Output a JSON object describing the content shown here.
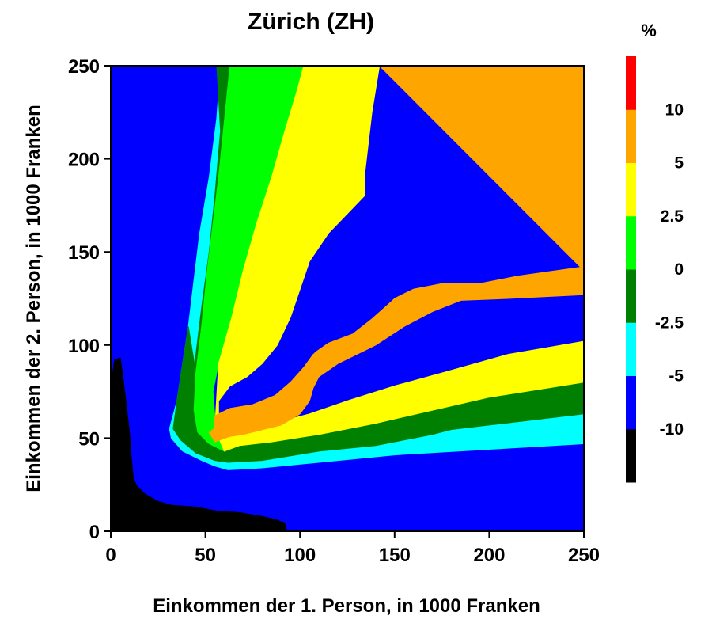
{
  "chart_data": {
    "type": "heatmap",
    "title": "Zürich (ZH)",
    "xlabel": "Einkommen der 1. Person, in 1000 Franken",
    "ylabel": "Einkommen der 2. Person, in 1000 Franken",
    "xlim": [
      0,
      250
    ],
    "ylim": [
      0,
      250
    ],
    "xticks": [
      0,
      50,
      100,
      150,
      200,
      250
    ],
    "yticks": [
      0,
      50,
      100,
      150,
      200,
      250
    ],
    "xtick_labels": [
      "0",
      "50",
      "100",
      "150",
      "200",
      "250"
    ],
    "ytick_labels": [
      "0",
      "50",
      "100",
      "150",
      "200",
      "250"
    ],
    "legend": {
      "unit": "%",
      "placement": "right",
      "bins": [
        {
          "color": "#000000",
          "range": "< -10"
        },
        {
          "color": "#0000ff",
          "range": "-10 to -5"
        },
        {
          "color": "#00ffff",
          "range": "-5 to -2.5"
        },
        {
          "color": "#008000",
          "range": "-2.5 to 0"
        },
        {
          "color": "#00ff00",
          "range": "0 to 2.5"
        },
        {
          "color": "#ffff00",
          "range": "2.5 to 5"
        },
        {
          "color": "#ffa500",
          "range": "5 to 10"
        },
        {
          "color": "#ff0000",
          "range": "> 10"
        }
      ],
      "tick_labels": [
        "-10",
        "-5",
        "-2.5",
        "0",
        "2.5",
        "5",
        "10"
      ]
    },
    "regions": [
      {
        "level": "-10 to -5",
        "color": "#0000ff",
        "polygon": [
          [
            0,
            0
          ],
          [
            250,
            0
          ],
          [
            250,
            250
          ],
          [
            0,
            250
          ]
        ]
      },
      {
        "level": "-5 to -2.5",
        "color": "#00ffff",
        "polygon": [
          [
            48,
            250
          ],
          [
            58,
            250
          ],
          [
            56,
            222
          ],
          [
            52,
            190
          ],
          [
            47,
            160
          ],
          [
            44,
            135
          ],
          [
            41,
            110
          ],
          [
            38,
            90
          ],
          [
            35,
            70
          ],
          [
            31,
            55
          ],
          [
            32,
            50
          ],
          [
            38,
            43
          ],
          [
            48,
            38
          ],
          [
            55,
            35
          ],
          [
            62,
            33
          ],
          [
            80,
            34
          ],
          [
            110,
            37
          ],
          [
            150,
            41
          ],
          [
            200,
            44
          ],
          [
            250,
            47
          ],
          [
            250,
            63
          ],
          [
            200,
            57
          ],
          [
            150,
            51
          ],
          [
            110,
            46
          ],
          [
            85,
            45
          ],
          [
            68,
            42
          ],
          [
            60,
            40
          ],
          [
            55,
            44
          ],
          [
            49,
            50
          ],
          [
            45,
            57
          ],
          [
            44,
            72
          ],
          [
            45,
            95
          ],
          [
            48,
            120
          ],
          [
            52,
            150
          ],
          [
            55,
            180
          ],
          [
            58,
            215
          ],
          [
            63,
            250
          ]
        ]
      },
      {
        "level": "-2.5 to 0",
        "color": "#008000",
        "polygon": [
          [
            56,
            250
          ],
          [
            67,
            250
          ],
          [
            65,
            225
          ],
          [
            61,
            195
          ],
          [
            57,
            165
          ],
          [
            54,
            140
          ],
          [
            51,
            115
          ],
          [
            48,
            95
          ],
          [
            46,
            75
          ],
          [
            47,
            60
          ],
          [
            51,
            53
          ],
          [
            57,
            49
          ],
          [
            66,
            48
          ],
          [
            90,
            49
          ],
          [
            120,
            51
          ],
          [
            150,
            56
          ],
          [
            200,
            65
          ],
          [
            250,
            75
          ],
          [
            250,
            63
          ],
          [
            200,
            57
          ],
          [
            150,
            51
          ],
          [
            110,
            46
          ],
          [
            85,
            45
          ],
          [
            68,
            42
          ],
          [
            60,
            40
          ],
          [
            55,
            44
          ],
          [
            49,
            50
          ],
          [
            45,
            57
          ],
          [
            44,
            72
          ],
          [
            45,
            95
          ],
          [
            48,
            120
          ],
          [
            52,
            150
          ],
          [
            55,
            180
          ],
          [
            58,
            215
          ]
        ]
      },
      {
        "level": "-2.5 to 0",
        "color": "#008000",
        "polygon": [
          [
            41,
            110
          ],
          [
            38,
            90
          ],
          [
            35,
            70
          ],
          [
            33,
            55
          ],
          [
            37,
            49
          ],
          [
            45,
            42
          ],
          [
            55,
            38
          ],
          [
            62,
            37
          ],
          [
            80,
            38
          ],
          [
            110,
            43
          ],
          [
            140,
            46
          ],
          [
            170,
            52
          ],
          [
            200,
            60
          ],
          [
            250,
            70
          ],
          [
            250,
            80
          ],
          [
            200,
            72
          ],
          [
            170,
            65
          ],
          [
            140,
            58
          ],
          [
            110,
            52
          ],
          [
            85,
            48
          ],
          [
            68,
            46
          ],
          [
            60,
            43
          ],
          [
            52,
            47
          ],
          [
            46,
            53
          ],
          [
            44,
            65
          ],
          [
            45,
            85
          ]
        ]
      },
      {
        "level": "0 to 2.5",
        "color": "#00ff00",
        "polygon": [
          [
            63,
            250
          ],
          [
            102,
            250
          ],
          [
            98,
            235
          ],
          [
            92,
            215
          ],
          [
            85,
            190
          ],
          [
            77,
            165
          ],
          [
            70,
            140
          ],
          [
            64,
            115
          ],
          [
            58,
            95
          ],
          [
            54,
            75
          ],
          [
            55,
            62
          ],
          [
            60,
            56
          ],
          [
            70,
            54
          ],
          [
            90,
            55
          ],
          [
            115,
            60
          ],
          [
            140,
            67
          ],
          [
            170,
            78
          ],
          [
            200,
            86
          ],
          [
            250,
            102
          ],
          [
            250,
            80
          ],
          [
            200,
            72
          ],
          [
            170,
            65
          ],
          [
            140,
            58
          ],
          [
            110,
            52
          ],
          [
            85,
            48
          ],
          [
            68,
            46
          ],
          [
            60,
            43
          ],
          [
            52,
            47
          ],
          [
            46,
            53
          ],
          [
            44,
            65
          ],
          [
            45,
            85
          ],
          [
            48,
            110
          ],
          [
            51,
            140
          ],
          [
            54,
            165
          ],
          [
            57,
            190
          ],
          [
            60,
            220
          ]
        ]
      },
      {
        "level": "2.5 to 5",
        "color": "#ffff00",
        "polygon": [
          [
            102,
            250
          ],
          [
            142,
            250
          ],
          [
            138,
            225
          ],
          [
            134,
            190
          ],
          [
            134,
            180
          ],
          [
            115,
            160
          ],
          [
            105,
            145
          ],
          [
            100,
            130
          ],
          [
            95,
            115
          ],
          [
            88,
            100
          ],
          [
            80,
            90
          ],
          [
            72,
            83
          ],
          [
            63,
            78
          ],
          [
            57,
            70
          ],
          [
            57,
            62
          ],
          [
            62,
            58
          ],
          [
            72,
            57
          ],
          [
            90,
            59
          ],
          [
            105,
            63
          ],
          [
            125,
            70
          ],
          [
            150,
            78
          ],
          [
            175,
            85
          ],
          [
            210,
            95
          ],
          [
            250,
            102
          ],
          [
            250,
            80
          ],
          [
            200,
            72
          ],
          [
            170,
            65
          ],
          [
            140,
            58
          ],
          [
            110,
            52
          ],
          [
            85,
            48
          ],
          [
            68,
            46
          ],
          [
            60,
            43
          ],
          [
            55,
            55
          ],
          [
            57,
            90
          ],
          [
            64,
            115
          ],
          [
            70,
            140
          ],
          [
            77,
            165
          ],
          [
            85,
            190
          ],
          [
            92,
            215
          ],
          [
            98,
            235
          ]
        ]
      },
      {
        "level": "5 to 10",
        "color": "#ffa500",
        "polygon": [
          [
            142,
            250
          ],
          [
            250,
            250
          ],
          [
            250,
            142
          ],
          [
            215,
            137
          ],
          [
            195,
            133
          ],
          [
            175,
            133
          ],
          [
            160,
            130
          ],
          [
            150,
            125
          ],
          [
            140,
            115
          ],
          [
            130,
            106
          ],
          [
            115,
            100
          ],
          [
            107,
            95
          ],
          [
            102,
            88
          ],
          [
            95,
            80
          ],
          [
            87,
            73
          ],
          [
            75,
            68
          ],
          [
            63,
            66
          ],
          [
            55,
            62
          ],
          [
            55,
            55
          ],
          [
            57,
            50
          ],
          [
            70,
            52
          ],
          [
            90,
            57
          ],
          [
            100,
            63
          ],
          [
            105,
            70
          ],
          [
            107,
            77
          ],
          [
            110,
            83
          ],
          [
            120,
            90
          ],
          [
            140,
            100
          ],
          [
            155,
            110
          ],
          [
            170,
            118
          ],
          [
            185,
            124
          ],
          [
            210,
            125
          ],
          [
            250,
            127
          ],
          [
            250,
            142
          ]
        ]
      },
      {
        "level": "5 to 10",
        "color": "#ffa500",
        "polygon": [
          [
            142,
            250
          ],
          [
            250,
            250
          ],
          [
            250,
            140
          ],
          [
            220,
            136
          ],
          [
            195,
            133
          ],
          [
            175,
            133
          ],
          [
            160,
            129
          ],
          [
            148,
            123
          ],
          [
            138,
            114
          ],
          [
            128,
            106
          ],
          [
            115,
            101
          ],
          [
            108,
            96
          ],
          [
            103,
            87
          ],
          [
            96,
            80
          ],
          [
            86,
            72
          ],
          [
            74,
            66
          ],
          [
            64,
            62
          ],
          [
            57,
            57
          ],
          [
            52,
            53
          ],
          [
            55,
            48
          ],
          [
            63,
            51
          ],
          [
            75,
            55
          ],
          [
            88,
            60
          ],
          [
            98,
            68
          ],
          [
            104,
            78
          ],
          [
            110,
            88
          ],
          [
            120,
            97
          ],
          [
            133,
            104
          ],
          [
            145,
            112
          ],
          [
            160,
            118
          ],
          [
            175,
            124
          ],
          [
            195,
            128
          ],
          [
            215,
            130
          ],
          [
            250,
            132
          ],
          [
            250,
            140
          ]
        ]
      },
      {
        "level": "< -10",
        "color": "#000000",
        "polygon": [
          [
            0,
            0
          ],
          [
            0,
            78
          ],
          [
            2,
            92
          ],
          [
            5,
            93
          ],
          [
            6,
            86
          ],
          [
            8,
            70
          ],
          [
            10,
            52
          ],
          [
            11,
            38
          ],
          [
            12,
            28
          ],
          [
            14,
            24
          ],
          [
            18,
            20
          ],
          [
            25,
            16
          ],
          [
            32,
            14
          ],
          [
            45,
            13
          ],
          [
            55,
            11
          ],
          [
            68,
            10
          ],
          [
            80,
            8
          ],
          [
            88,
            6
          ],
          [
            92,
            4
          ],
          [
            93,
            0
          ]
        ]
      }
    ]
  }
}
